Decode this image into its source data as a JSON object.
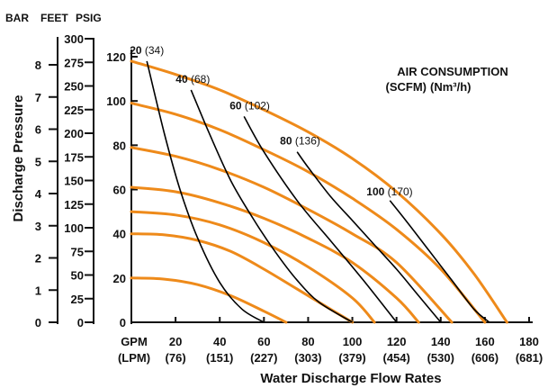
{
  "chart_data": {
    "type": "line",
    "xlabel": "Water Discharge Flow Rates",
    "ylabel": "Discharge Pressure",
    "x_units": [
      "GPM",
      "(LPM)"
    ],
    "y_units": [
      "BAR",
      "FEET",
      "PSIG"
    ],
    "xlim": [
      0,
      180
    ],
    "ylim": [
      0,
      120
    ],
    "x_ticks": [
      {
        "value": 20,
        "gpm": "20",
        "lpm": "(76)"
      },
      {
        "value": 40,
        "gpm": "40",
        "lpm": "(151)"
      },
      {
        "value": 60,
        "gpm": "60",
        "lpm": "(227)"
      },
      {
        "value": 80,
        "gpm": "80",
        "lpm": "(303)"
      },
      {
        "value": 100,
        "gpm": "100",
        "lpm": "(379)"
      },
      {
        "value": 120,
        "gpm": "120",
        "lpm": "(454)"
      },
      {
        "value": 140,
        "gpm": "140",
        "lpm": "(530)"
      },
      {
        "value": 160,
        "gpm": "160",
        "lpm": "(606)"
      },
      {
        "value": 180,
        "gpm": "180",
        "lpm": "(681)"
      }
    ],
    "psig_ticks": [
      0,
      20,
      40,
      60,
      80,
      100,
      120
    ],
    "feet_ticks": [
      0,
      25,
      50,
      75,
      100,
      125,
      150,
      175,
      200,
      225,
      250,
      275,
      300
    ],
    "bar_ticks": [
      0,
      1,
      2,
      3,
      4,
      5,
      6,
      7,
      8
    ],
    "legend_title": [
      "AIR CONSUMPTION",
      "(SCFM)",
      "(Nm³/h)"
    ],
    "pressure_curves": [
      {
        "x": [
          0,
          15,
          30,
          45,
          60,
          70
        ],
        "y": [
          20,
          19.5,
          17,
          12,
          5,
          0
        ]
      },
      {
        "x": [
          0,
          15,
          30,
          45,
          60,
          75,
          90,
          100
        ],
        "y": [
          40,
          39.5,
          37,
          32,
          24,
          15,
          6,
          0
        ]
      },
      {
        "x": [
          0,
          20,
          40,
          60,
          80,
          100,
          110
        ],
        "y": [
          50,
          48.5,
          44,
          36,
          25,
          11,
          0
        ]
      },
      {
        "x": [
          0,
          20,
          40,
          60,
          80,
          100,
          120,
          130
        ],
        "y": [
          61,
          59,
          54,
          47,
          38,
          27,
          11,
          0
        ]
      },
      {
        "x": [
          0,
          20,
          40,
          60,
          80,
          100,
          120,
          145
        ],
        "y": [
          79,
          75,
          69,
          61,
          51,
          40,
          27,
          0
        ]
      },
      {
        "x": [
          0,
          20,
          40,
          60,
          80,
          100,
          120,
          140,
          160
        ],
        "y": [
          99,
          94,
          87,
          78,
          68,
          56,
          42,
          24,
          0
        ]
      },
      {
        "x": [
          0,
          20,
          40,
          60,
          80,
          100,
          120,
          140,
          155,
          170
        ],
        "y": [
          118,
          112,
          105,
          96,
          86,
          74,
          59,
          40,
          22,
          0
        ]
      }
    ],
    "air_curves": [
      {
        "scfm": "20",
        "nm3h": "(34)",
        "x": [
          7,
          15,
          22,
          30,
          40,
          50,
          60
        ],
        "y": [
          118,
          85,
          60,
          38,
          18,
          6,
          0
        ]
      },
      {
        "scfm": "40",
        "nm3h": "(68)",
        "x": [
          27,
          35,
          45,
          55,
          65,
          75,
          85,
          100
        ],
        "y": [
          105,
          86,
          64,
          47,
          32,
          19,
          9,
          0
        ]
      },
      {
        "scfm": "60",
        "nm3h": "(102)",
        "x": [
          51,
          60,
          75,
          90,
          105,
          120
        ],
        "y": [
          93,
          77,
          55,
          37,
          19,
          0
        ]
      },
      {
        "scfm": "80",
        "nm3h": "(136)",
        "x": [
          75,
          80,
          90,
          100,
          110,
          120,
          130,
          140
        ],
        "y": [
          77,
          70,
          57,
          46,
          35,
          24,
          12,
          0
        ]
      },
      {
        "scfm": "100",
        "nm3h": "(170)",
        "x": [
          117,
          125,
          135,
          145,
          155,
          162
        ],
        "y": [
          55,
          45,
          32,
          19,
          6,
          0
        ]
      }
    ],
    "colors": {
      "pressure": "#ee8a1a",
      "air": "#000000",
      "text": "#111111"
    },
    "grid": false,
    "legend_position": "top-right"
  }
}
